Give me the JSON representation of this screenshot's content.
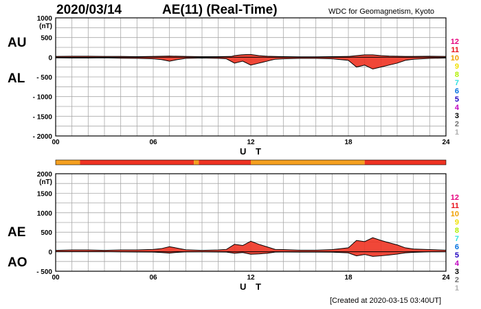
{
  "header": {
    "date": "2020/03/14",
    "title": "AE(11) (Real-Time)",
    "source": "WDC for Geomagnetism, Kyoto"
  },
  "footer": {
    "created": "[Created at 2020-03-15 03:40UT]"
  },
  "labels": {
    "au": "AU",
    "al": "AL",
    "ae": "AE",
    "ao": "AO",
    "unit": "(nT)",
    "xlabel": "U T"
  },
  "station_legend": {
    "labels": [
      "12",
      "11",
      "10",
      "9",
      "8",
      "7",
      "6",
      "5",
      "4",
      "3",
      "2",
      "1"
    ],
    "colors": [
      "#e6007e",
      "#e8101a",
      "#f0a000",
      "#f0e000",
      "#b0f000",
      "#30e0e0",
      "#0070e0",
      "#2000c0",
      "#c000c0",
      "#000000",
      "#707070",
      "#b0b0b0"
    ]
  },
  "colors": {
    "red": "#ee3322",
    "orange": "#f5a020",
    "yellow": "#f0d000"
  },
  "chart_data": [
    {
      "type": "area",
      "panel": "AU/AL",
      "xlabel": "U T",
      "ylabel": "(nT)",
      "xlim": [
        0,
        24
      ],
      "ylim": [
        -2000,
        1000
      ],
      "xticks": [
        0,
        6,
        12,
        18,
        24
      ],
      "xticklabels": [
        "00",
        "06",
        "12",
        "18",
        "24"
      ],
      "yticks": [
        1000,
        500,
        0,
        -500,
        -1000,
        -1500,
        -2000
      ],
      "yticklabels": [
        "1000",
        "500",
        "0",
        "- 500",
        "- 1000",
        "- 1500",
        "- 2000"
      ],
      "grid": true,
      "series": [
        {
          "x": [
            0,
            1,
            2,
            3,
            4,
            5,
            6,
            7,
            8,
            9,
            10,
            10.8,
            11,
            11.4,
            11.8,
            12,
            12.5,
            13,
            14,
            15,
            16,
            17,
            18,
            18.5,
            19,
            19.5,
            20,
            20.5,
            21,
            21.5,
            22,
            23,
            24
          ],
          "values": [
            20,
            25,
            25,
            20,
            20,
            15,
            20,
            30,
            20,
            15,
            15,
            20,
            40,
            60,
            70,
            70,
            40,
            25,
            15,
            10,
            10,
            15,
            20,
            40,
            60,
            60,
            40,
            30,
            25,
            20,
            20,
            25,
            20
          ]
        },
        {
          "x": [
            0,
            1,
            2,
            3,
            4,
            5,
            6,
            6.5,
            7,
            7.5,
            8,
            9,
            10,
            10.5,
            11,
            11.5,
            12,
            12.5,
            13,
            13.5,
            14,
            15,
            16,
            17,
            18,
            18.5,
            19,
            19.5,
            20,
            20.5,
            21,
            21.5,
            22,
            23,
            24
          ],
          "values": [
            -15,
            -20,
            -20,
            -15,
            -25,
            -30,
            -40,
            -60,
            -100,
            -60,
            -30,
            -20,
            -30,
            -40,
            -150,
            -100,
            -200,
            -150,
            -100,
            -50,
            -40,
            -30,
            -30,
            -40,
            -80,
            -250,
            -200,
            -300,
            -250,
            -200,
            -150,
            -80,
            -50,
            -30,
            -20
          ]
        }
      ]
    },
    {
      "type": "area",
      "panel": "AE/AO",
      "xlabel": "U T",
      "ylabel": "(nT)",
      "xlim": [
        0,
        24
      ],
      "ylim": [
        -500,
        2000
      ],
      "xticks": [
        0,
        6,
        12,
        18,
        24
      ],
      "xticklabels": [
        "00",
        "06",
        "12",
        "18",
        "24"
      ],
      "yticks": [
        2000,
        1500,
        1000,
        500,
        0,
        -500
      ],
      "yticklabels": [
        "2000",
        "1500",
        "1000",
        "500",
        "0",
        "- 500"
      ],
      "grid": true,
      "series": [
        {
          "x": [
            0,
            1,
            2,
            3,
            4,
            5,
            6,
            6.5,
            7,
            7.5,
            8,
            9,
            10,
            10.5,
            11,
            11.5,
            12,
            12.5,
            13,
            13.5,
            14,
            15,
            16,
            17,
            18,
            18.5,
            19,
            19.5,
            20,
            20.5,
            21,
            21.5,
            22,
            23,
            24
          ],
          "values": [
            35,
            45,
            45,
            35,
            45,
            45,
            60,
            80,
            130,
            90,
            50,
            35,
            45,
            60,
            190,
            160,
            270,
            190,
            125,
            60,
            55,
            40,
            40,
            55,
            100,
            290,
            260,
            360,
            290,
            230,
            175,
            100,
            70,
            55,
            40
          ]
        },
        {
          "x": [
            0,
            1,
            2,
            3,
            4,
            5,
            6,
            6.5,
            7,
            7.5,
            8,
            9,
            10,
            10.5,
            11,
            11.5,
            12,
            12.5,
            13,
            13.5,
            14,
            15,
            16,
            17,
            18,
            18.5,
            19,
            19.5,
            20,
            20.5,
            21,
            21.5,
            22,
            23,
            24
          ],
          "values": [
            3,
            3,
            3,
            3,
            -3,
            -8,
            -10,
            -20,
            -35,
            -15,
            -5,
            -3,
            -8,
            -10,
            -40,
            -20,
            -65,
            -55,
            -40,
            -10,
            -8,
            -10,
            -10,
            -12,
            -30,
            -105,
            -70,
            -120,
            -105,
            -85,
            -60,
            -30,
            -15,
            -3,
            0
          ]
        }
      ]
    }
  ],
  "station_bar": {
    "segments": [
      {
        "from": 0,
        "to": 1.5,
        "level": "orange"
      },
      {
        "from": 1.5,
        "to": 8.5,
        "level": "red"
      },
      {
        "from": 8.5,
        "to": 8.8,
        "level": "orange"
      },
      {
        "from": 8.8,
        "to": 12,
        "level": "red"
      },
      {
        "from": 12,
        "to": 19,
        "level": "orange"
      },
      {
        "from": 19,
        "to": 24,
        "level": "red"
      }
    ]
  }
}
